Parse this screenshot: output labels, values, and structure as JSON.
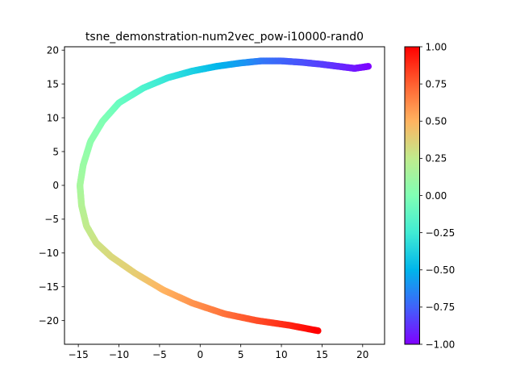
{
  "chart_data": {
    "type": "scatter",
    "title": "tsne_demonstration-num2vec_pow-i10000-rand0",
    "xlabel": "",
    "ylabel": "",
    "xlim": [
      -16.7,
      22.7
    ],
    "ylim": [
      -23.5,
      20.5
    ],
    "xticks": [
      -15,
      -10,
      -5,
      0,
      5,
      10,
      15,
      20
    ],
    "yticks": [
      -20,
      -15,
      -10,
      -5,
      0,
      5,
      10,
      15,
      20
    ],
    "grid": false,
    "marker_radius_hint": "small circles",
    "colormap": "rainbow",
    "color_value_range": [
      -1.0,
      1.0
    ],
    "colorbar": {
      "ticks": [
        -1.0,
        -0.75,
        -0.5,
        -0.25,
        0.0,
        0.25,
        0.5,
        0.75,
        1.0
      ],
      "tick_labels": [
        "−1.00",
        "−0.75",
        "−0.50",
        "−0.25",
        "0.00",
        "0.25",
        "0.50",
        "0.75",
        "1.00"
      ]
    },
    "curve_samples": [
      {
        "c": -1.0,
        "x": 20.7,
        "y": 17.6
      },
      {
        "c": -0.95,
        "x": 19.0,
        "y": 17.3
      },
      {
        "c": -0.9,
        "x": 17.0,
        "y": 17.6
      },
      {
        "c": -0.85,
        "x": 15.0,
        "y": 17.9
      },
      {
        "c": -0.8,
        "x": 12.5,
        "y": 18.2
      },
      {
        "c": -0.75,
        "x": 10.0,
        "y": 18.4
      },
      {
        "c": -0.7,
        "x": 7.5,
        "y": 18.4
      },
      {
        "c": -0.6,
        "x": 5.0,
        "y": 18.1
      },
      {
        "c": -0.5,
        "x": 2.0,
        "y": 17.6
      },
      {
        "c": -0.4,
        "x": -1.0,
        "y": 16.9
      },
      {
        "c": -0.3,
        "x": -4.0,
        "y": 15.9
      },
      {
        "c": -0.2,
        "x": -7.0,
        "y": 14.4
      },
      {
        "c": -0.1,
        "x": -10.0,
        "y": 12.2
      },
      {
        "c": 0.0,
        "x": -12.0,
        "y": 9.5
      },
      {
        "c": 0.05,
        "x": -13.5,
        "y": 6.5
      },
      {
        "c": 0.1,
        "x": -14.4,
        "y": 3.0
      },
      {
        "c": 0.15,
        "x": -14.8,
        "y": 0.0
      },
      {
        "c": 0.2,
        "x": -14.6,
        "y": -3.0
      },
      {
        "c": 0.25,
        "x": -14.0,
        "y": -6.0
      },
      {
        "c": 0.3,
        "x": -12.8,
        "y": -8.5
      },
      {
        "c": 0.35,
        "x": -11.0,
        "y": -10.5
      },
      {
        "c": 0.4,
        "x": -8.0,
        "y": -13.0
      },
      {
        "c": 0.5,
        "x": -4.5,
        "y": -15.5
      },
      {
        "c": 0.6,
        "x": -1.0,
        "y": -17.4
      },
      {
        "c": 0.7,
        "x": 3.0,
        "y": -19.0
      },
      {
        "c": 0.8,
        "x": 7.0,
        "y": -20.0
      },
      {
        "c": 0.9,
        "x": 11.0,
        "y": -20.7
      },
      {
        "c": 1.0,
        "x": 14.5,
        "y": -21.5
      }
    ]
  }
}
